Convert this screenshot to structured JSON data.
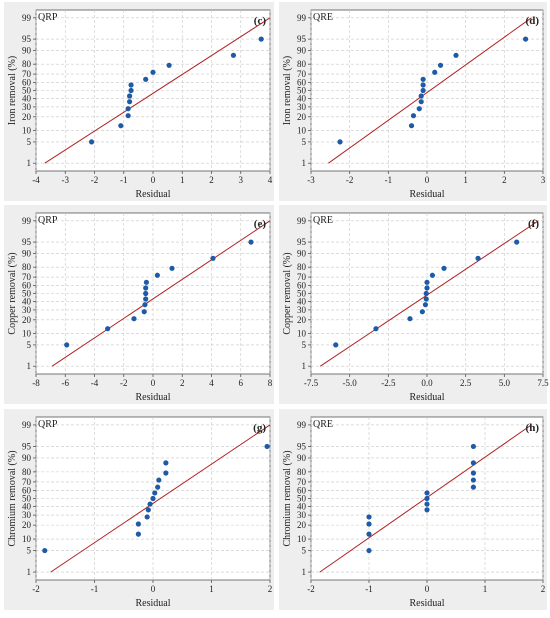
{
  "colors": {
    "panel_bg": "#eeeeee",
    "plot_bg": "#ffffff",
    "grid": "#c8c8c8",
    "fit_line": "#b22222",
    "points": "#1f5aa6",
    "axis": "#555555"
  },
  "chart_data": [
    {
      "type": "scatter",
      "kind": "normal-probability-plot",
      "label": "QRP",
      "letter": "(c)",
      "xlabel": "Residual",
      "ylabel": "Iron removal (%)",
      "xlim": [
        -4,
        4
      ],
      "xticks": [
        "-4",
        "-3",
        "-2",
        "-1",
        "0",
        "1",
        "2",
        "3",
        "4"
      ],
      "xtick_values": [
        -4,
        -3,
        -2,
        -1,
        0,
        1,
        2,
        3,
        4
      ],
      "yticks": [
        "1",
        "5",
        "10",
        "20",
        "30",
        "40",
        "50",
        "60",
        "70",
        "80",
        "90",
        "95",
        "99"
      ],
      "grid": true,
      "fit_line": [
        [
          -3.7,
          1
        ],
        [
          4.0,
          99
        ]
      ],
      "points": [
        [
          -2.1,
          5
        ],
        [
          -1.1,
          13
        ],
        [
          -0.85,
          21
        ],
        [
          -0.85,
          28
        ],
        [
          -0.8,
          36
        ],
        [
          -0.8,
          43
        ],
        [
          -0.75,
          50
        ],
        [
          -0.75,
          57
        ],
        [
          -0.25,
          64
        ],
        [
          0.0,
          72
        ],
        [
          0.55,
          79
        ],
        [
          2.75,
          87
        ],
        [
          3.7,
          95
        ]
      ]
    },
    {
      "type": "scatter",
      "kind": "normal-probability-plot",
      "label": "QRE",
      "letter": "(d)",
      "xlabel": "Residual",
      "ylabel": "Iron removal (%)",
      "xlim": [
        -3,
        3
      ],
      "xticks": [
        "-3",
        "-2",
        "-1",
        "0",
        "1",
        "2",
        "3"
      ],
      "xtick_values": [
        -3,
        -2,
        -1,
        0,
        1,
        2,
        3
      ],
      "yticks": [
        "1",
        "5",
        "10",
        "20",
        "30",
        "40",
        "50",
        "60",
        "70",
        "80",
        "90",
        "95",
        "99"
      ],
      "grid": true,
      "fit_line": [
        [
          -2.55,
          1
        ],
        [
          2.7,
          99
        ]
      ],
      "points": [
        [
          -2.25,
          5
        ],
        [
          -0.4,
          13
        ],
        [
          -0.35,
          21
        ],
        [
          -0.2,
          28
        ],
        [
          -0.15,
          36
        ],
        [
          -0.15,
          43
        ],
        [
          -0.1,
          50
        ],
        [
          -0.1,
          57
        ],
        [
          -0.1,
          64
        ],
        [
          0.2,
          72
        ],
        [
          0.35,
          79
        ],
        [
          0.75,
          87
        ],
        [
          2.55,
          95
        ]
      ]
    },
    {
      "type": "scatter",
      "kind": "normal-probability-plot",
      "label": "QRP",
      "letter": "(e)",
      "xlabel": "Residual",
      "ylabel": "Copper removal (%)",
      "xlim": [
        -8,
        8
      ],
      "xticks": [
        "-8",
        "-6",
        "-4",
        "-2",
        "0",
        "2",
        "4",
        "6",
        "8"
      ],
      "xtick_values": [
        -8,
        -6,
        -4,
        -2,
        0,
        2,
        4,
        6,
        8
      ],
      "yticks": [
        "1",
        "5",
        "10",
        "20",
        "30",
        "40",
        "50",
        "60",
        "70",
        "80",
        "90",
        "95",
        "99"
      ],
      "grid": true,
      "fit_line": [
        [
          -6.9,
          1
        ],
        [
          8.0,
          99
        ]
      ],
      "points": [
        [
          -5.9,
          5
        ],
        [
          -3.1,
          13
        ],
        [
          -1.3,
          21
        ],
        [
          -0.6,
          28
        ],
        [
          -0.55,
          36
        ],
        [
          -0.5,
          43
        ],
        [
          -0.5,
          50
        ],
        [
          -0.5,
          57
        ],
        [
          -0.45,
          64
        ],
        [
          0.3,
          72
        ],
        [
          1.3,
          79
        ],
        [
          4.1,
          87
        ],
        [
          6.7,
          95
        ]
      ]
    },
    {
      "type": "scatter",
      "kind": "normal-probability-plot",
      "label": "QRE",
      "letter": "(f)",
      "xlabel": "Residual",
      "ylabel": "Copper removal (%)",
      "xlim": [
        -7.5,
        7.5
      ],
      "xticks": [
        "-7.5",
        "-5.0",
        "-2.5",
        "0.0",
        "2.5",
        "5.0",
        "7.5"
      ],
      "xtick_values": [
        -7.5,
        -5.0,
        -2.5,
        0.0,
        2.5,
        5.0,
        7.5
      ],
      "yticks": [
        "1",
        "5",
        "10",
        "20",
        "30",
        "40",
        "50",
        "60",
        "70",
        "80",
        "90",
        "95",
        "99"
      ],
      "grid": true,
      "fit_line": [
        [
          -6.9,
          1
        ],
        [
          7.2,
          99
        ]
      ],
      "points": [
        [
          -5.9,
          5
        ],
        [
          -3.3,
          13
        ],
        [
          -1.1,
          21
        ],
        [
          -0.3,
          28
        ],
        [
          -0.1,
          36
        ],
        [
          -0.05,
          43
        ],
        [
          -0.05,
          50
        ],
        [
          0.0,
          57
        ],
        [
          0.0,
          64
        ],
        [
          0.35,
          72
        ],
        [
          1.1,
          79
        ],
        [
          3.3,
          87
        ],
        [
          5.8,
          95
        ]
      ]
    },
    {
      "type": "scatter",
      "kind": "normal-probability-plot",
      "label": "QRP",
      "letter": "(g)",
      "xlabel": "Residual",
      "ylabel": "Chromium removal (%)",
      "xlim": [
        -2,
        2
      ],
      "xticks": [
        "-2",
        "-1",
        "0",
        "1",
        "2"
      ],
      "xtick_values": [
        -2,
        -1,
        0,
        1,
        2
      ],
      "yticks": [
        "1",
        "5",
        "10",
        "20",
        "30",
        "40",
        "50",
        "60",
        "70",
        "80",
        "90",
        "95",
        "99"
      ],
      "grid": true,
      "fit_line": [
        [
          -1.75,
          1
        ],
        [
          2.0,
          99
        ]
      ],
      "points": [
        [
          -1.85,
          5
        ],
        [
          -0.25,
          13
        ],
        [
          -0.25,
          21
        ],
        [
          -0.1,
          28
        ],
        [
          -0.08,
          36
        ],
        [
          -0.05,
          43
        ],
        [
          0.0,
          50
        ],
        [
          0.03,
          57
        ],
        [
          0.08,
          64
        ],
        [
          0.1,
          72
        ],
        [
          0.22,
          79
        ],
        [
          0.22,
          87
        ],
        [
          1.95,
          95
        ]
      ]
    },
    {
      "type": "scatter",
      "kind": "normal-probability-plot",
      "label": "QRE",
      "letter": "(h)",
      "xlabel": "Residual",
      "ylabel": "Chromium removal (%)",
      "xlim": [
        -2,
        2
      ],
      "xticks": [
        "-2",
        "-1",
        "0",
        "1",
        "2"
      ],
      "xtick_values": [
        -2,
        -1,
        0,
        1,
        2
      ],
      "yticks": [
        "1",
        "5",
        "10",
        "20",
        "30",
        "40",
        "50",
        "60",
        "70",
        "80",
        "90",
        "95",
        "99"
      ],
      "grid": true,
      "fit_line": [
        [
          -1.85,
          1
        ],
        [
          1.8,
          99
        ]
      ],
      "points": [
        [
          -1.0,
          5
        ],
        [
          -1.0,
          13
        ],
        [
          -1.0,
          21
        ],
        [
          -1.0,
          28
        ],
        [
          0.0,
          36
        ],
        [
          0.0,
          43
        ],
        [
          0.0,
          50
        ],
        [
          0.0,
          57
        ],
        [
          0.8,
          64
        ],
        [
          0.8,
          72
        ],
        [
          0.8,
          79
        ],
        [
          0.8,
          87
        ],
        [
          0.8,
          95
        ]
      ]
    }
  ]
}
